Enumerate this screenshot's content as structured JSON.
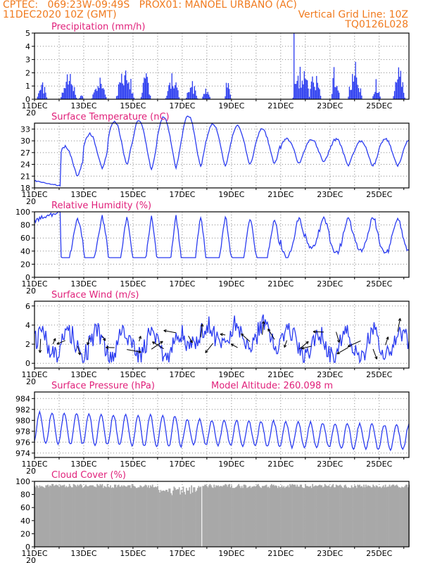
{
  "header": {
    "line1": "CPTEC:   069:23W-09:49S   PROX01: MANOEL URBANO (AC)",
    "line2_left": "11DEC2020 10Z (GMT)",
    "line2_right": "Vertical Grid Line: 10Z",
    "line3_right": "TQ0126L028"
  },
  "colors": {
    "header": "#f07a1e",
    "title": "#e0207a",
    "series": "#2b3cf0",
    "bar": "#2b3cf0",
    "cloud": "#a8a8a8",
    "wind_arrow": "#000000"
  },
  "x_axis": {
    "labels": [
      "11DEC",
      "13DEC",
      "15DEC",
      "17DEC",
      "19DEC",
      "21DEC",
      "23DEC",
      "25DEC"
    ],
    "cut_label": "20"
  },
  "chart_data": [
    {
      "type": "bar",
      "title": "Precipitation (mm/h)",
      "ylim": [
        0,
        5
      ],
      "yticks": [
        0,
        1,
        2,
        3,
        4,
        5
      ],
      "x_start": "11DEC2020 10Z",
      "step_hours": 1,
      "values": [
        0,
        0,
        0,
        0,
        0,
        0,
        0,
        0,
        0,
        0,
        0,
        0,
        0,
        0,
        0,
        0,
        0,
        0,
        0,
        0,
        0,
        0,
        0,
        0,
        0,
        0,
        0,
        0,
        0,
        0,
        0,
        0,
        0,
        0,
        0,
        0,
        0,
        0,
        0,
        0,
        0,
        0,
        0,
        0,
        0,
        0,
        0,
        0,
        0,
        0,
        0,
        0,
        0,
        0,
        0,
        0,
        0,
        0,
        0,
        0,
        0,
        0,
        0,
        0,
        0,
        0,
        0,
        0,
        0,
        0,
        0,
        0,
        0,
        0,
        0,
        0,
        0,
        0,
        0,
        0,
        0,
        0,
        0,
        0,
        0,
        0,
        0,
        0,
        0,
        0,
        0,
        0,
        0,
        0,
        0,
        0,
        0,
        0,
        0,
        0,
        0,
        0,
        0,
        0,
        0,
        0,
        0,
        0,
        0,
        0,
        0,
        0,
        0,
        0,
        0,
        0,
        0,
        0,
        0,
        0,
        0,
        0,
        0,
        0,
        0,
        0,
        0,
        0,
        0,
        0,
        0,
        0,
        0,
        0,
        0,
        0,
        0,
        0,
        0,
        0,
        0,
        0,
        0,
        0,
        0,
        0,
        0,
        0,
        0,
        0,
        0,
        0,
        0,
        0,
        0,
        0,
        0,
        0,
        0,
        0,
        0,
        0,
        0,
        0,
        0,
        0,
        0,
        0,
        0,
        0,
        0,
        0,
        0,
        0,
        0,
        0,
        0,
        0,
        0,
        0,
        0,
        0,
        0,
        0,
        0,
        0,
        0,
        0,
        0,
        0,
        0,
        0,
        0,
        0,
        0,
        0,
        0,
        0,
        0,
        0,
        0,
        0,
        0,
        0,
        0,
        0,
        0,
        0,
        0,
        0,
        0,
        0,
        0,
        0,
        0,
        0,
        0,
        0,
        0,
        0,
        0,
        0,
        0,
        0,
        0,
        0,
        0,
        0,
        0,
        0,
        0,
        0,
        0,
        0,
        0,
        0,
        0,
        0,
        0,
        0,
        0,
        0,
        0,
        0,
        0,
        0,
        0,
        0,
        0,
        0,
        0,
        0,
        0,
        0,
        0,
        0,
        0,
        0,
        0,
        0,
        0,
        0,
        0,
        0,
        0,
        0,
        0,
        0,
        0,
        0,
        0,
        0,
        0,
        0,
        0,
        0,
        0,
        0,
        0,
        0,
        0,
        0,
        0,
        0,
        0,
        0,
        0,
        0,
        0,
        0,
        0,
        0,
        0,
        0,
        0,
        0,
        0,
        0,
        0,
        0,
        0,
        0,
        0,
        0,
        0,
        0,
        0,
        0,
        0,
        0,
        0,
        0,
        0,
        0,
        0,
        0,
        0,
        0,
        0,
        0,
        0,
        0,
        0,
        0,
        0,
        0,
        0,
        0,
        0,
        0,
        0,
        0,
        0,
        0,
        0,
        0,
        0,
        0,
        0,
        0,
        0,
        0,
        0,
        0,
        0,
        0,
        0,
        0,
        0,
        0,
        0,
        0,
        0,
        0,
        0,
        0,
        0,
        0,
        0,
        0,
        0,
        0,
        0,
        0,
        0,
        0,
        0,
        0,
        0,
        0,
        0,
        0,
        0,
        0,
        0,
        0,
        0,
        0,
        0,
        0,
        0,
        0,
        0,
        0,
        0,
        0,
        0,
        0,
        0,
        0,
        0,
        0,
        0,
        0,
        0,
        0,
        0,
        0,
        0,
        0
      ]
    },
    {
      "type": "line",
      "title": "Surface Temperature (nC)",
      "ylim": [
        18,
        34.5
      ],
      "yticks": [
        18,
        21,
        24,
        27,
        30,
        33
      ],
      "values": []
    },
    {
      "type": "line",
      "title": "Relative Humidity (%)",
      "ylim": [
        0,
        100
      ],
      "yticks": [
        0,
        20,
        40,
        60,
        80,
        100
      ],
      "values": []
    },
    {
      "type": "line",
      "title": "Surface Wind (m/s)",
      "ylim": [
        -0.5,
        6.5
      ],
      "yticks": [
        0,
        2,
        4,
        6
      ],
      "values": []
    },
    {
      "type": "line",
      "title": "Surface Pressure (hPa)",
      "subtitle": "Model Altitude: 260.098 m",
      "ylim": [
        973.2,
        985.2
      ],
      "yticks": [
        974,
        976,
        978,
        980,
        982,
        984
      ],
      "values": []
    },
    {
      "type": "bar",
      "title": "Cloud Cover (%)",
      "ylim": [
        0,
        100
      ],
      "yticks": [
        0,
        20,
        40,
        60,
        80,
        100
      ],
      "values": []
    }
  ]
}
